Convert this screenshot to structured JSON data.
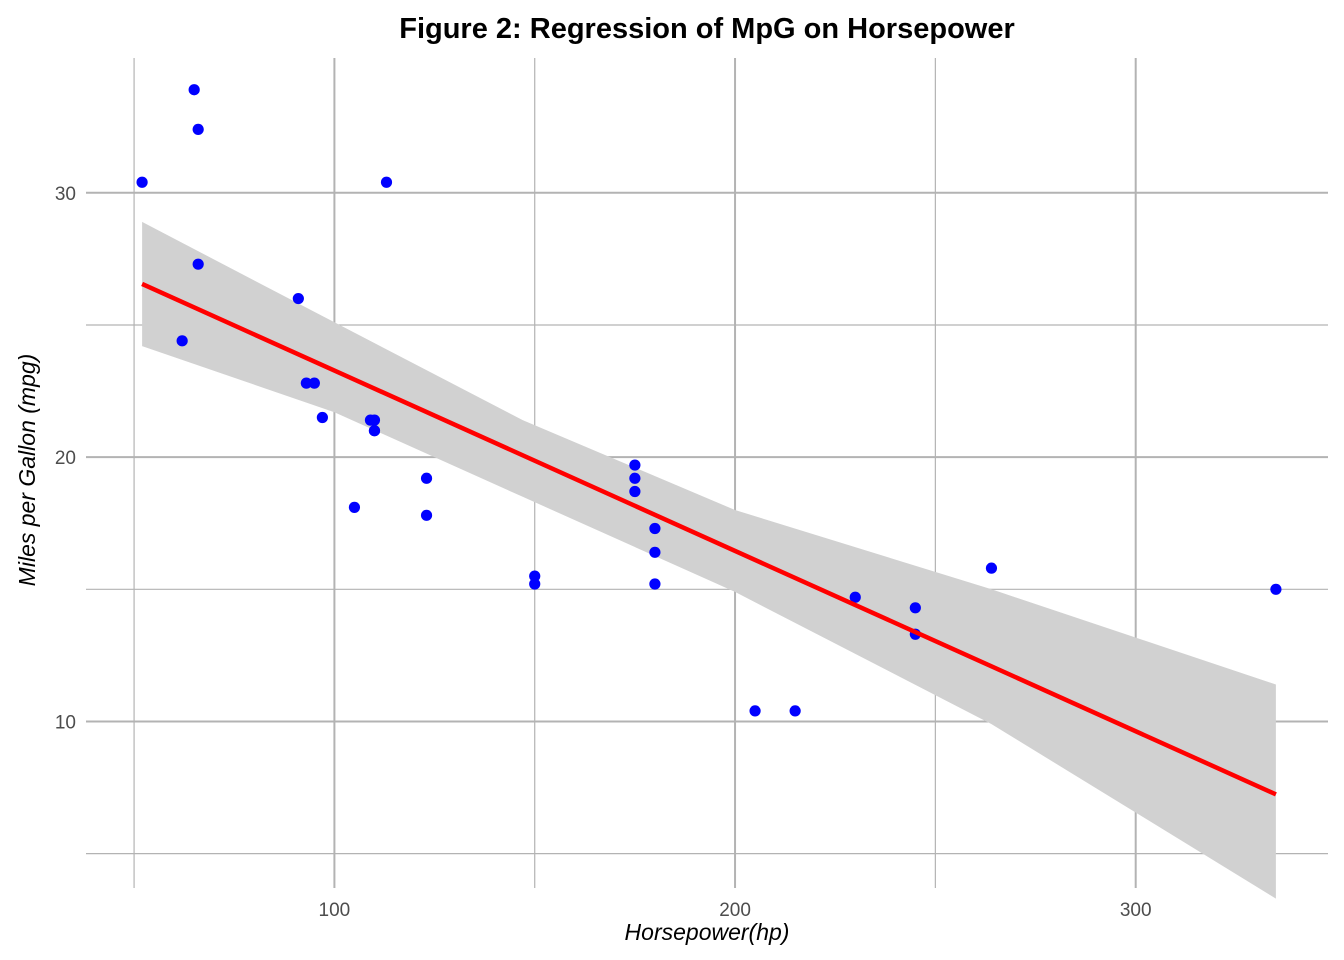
{
  "chart_data": {
    "type": "scatter",
    "title": "Figure 2: Regression of MpG on Horsepower",
    "xlabel": "Horsepower(hp)",
    "ylabel": "Miles per Gallon (mpg)",
    "xlim": [
      38,
      348
    ],
    "ylim": [
      3.7,
      35.1
    ],
    "x_major_ticks": [
      100,
      200,
      300
    ],
    "x_minor_ticks": [
      50,
      150,
      250
    ],
    "y_major_ticks": [
      10,
      20,
      30
    ],
    "y_minor_ticks": [
      5,
      15,
      25
    ],
    "grid": true,
    "legend": "none",
    "point_color": "#0000ff",
    "line_color": "#ff0000",
    "band_color": "#d1d1d1",
    "points": [
      {
        "x": 110,
        "y": 21.0
      },
      {
        "x": 110,
        "y": 21.0
      },
      {
        "x": 93,
        "y": 22.8
      },
      {
        "x": 110,
        "y": 21.4
      },
      {
        "x": 175,
        "y": 18.7
      },
      {
        "x": 105,
        "y": 18.1
      },
      {
        "x": 245,
        "y": 14.3
      },
      {
        "x": 62,
        "y": 24.4
      },
      {
        "x": 95,
        "y": 22.8
      },
      {
        "x": 123,
        "y": 19.2
      },
      {
        "x": 123,
        "y": 17.8
      },
      {
        "x": 180,
        "y": 16.4
      },
      {
        "x": 180,
        "y": 17.3
      },
      {
        "x": 180,
        "y": 15.2
      },
      {
        "x": 205,
        "y": 10.4
      },
      {
        "x": 215,
        "y": 10.4
      },
      {
        "x": 230,
        "y": 14.7
      },
      {
        "x": 66,
        "y": 32.4
      },
      {
        "x": 52,
        "y": 30.4
      },
      {
        "x": 65,
        "y": 33.9
      },
      {
        "x": 97,
        "y": 21.5
      },
      {
        "x": 150,
        "y": 15.5
      },
      {
        "x": 150,
        "y": 15.2
      },
      {
        "x": 245,
        "y": 13.3
      },
      {
        "x": 175,
        "y": 19.2
      },
      {
        "x": 66,
        "y": 27.3
      },
      {
        "x": 91,
        "y": 26.0
      },
      {
        "x": 113,
        "y": 30.4
      },
      {
        "x": 264,
        "y": 15.8
      },
      {
        "x": 175,
        "y": 19.7
      },
      {
        "x": 335,
        "y": 15.0
      },
      {
        "x": 109,
        "y": 21.4
      }
    ],
    "regression": {
      "intercept": 30.099,
      "slope": -0.06823,
      "x_range": [
        52,
        335
      ],
      "band": [
        {
          "x": 52,
          "lo": 24.2,
          "hi": 28.9
        },
        {
          "x": 100,
          "lo": 21.7,
          "hi": 25.1
        },
        {
          "x": 147,
          "lo": 18.5,
          "hi": 21.4
        },
        {
          "x": 200,
          "lo": 14.9,
          "hi": 18.0
        },
        {
          "x": 264,
          "lo": 9.9,
          "hi": 15.0
        },
        {
          "x": 335,
          "lo": 3.3,
          "hi": 11.4
        }
      ]
    }
  }
}
